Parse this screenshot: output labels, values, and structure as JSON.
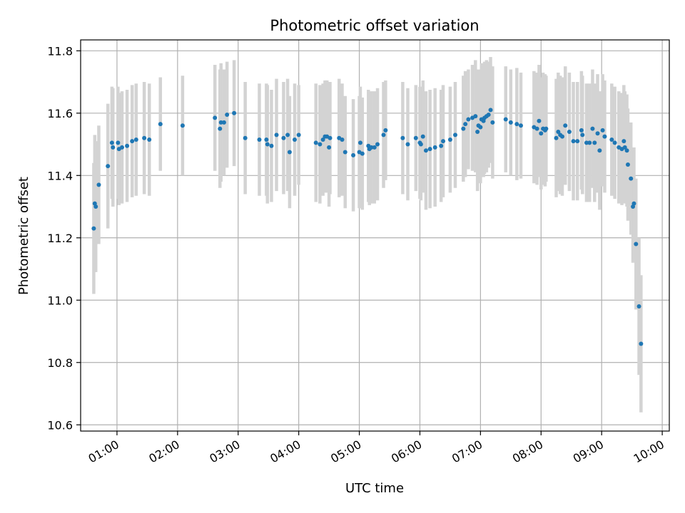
{
  "chart_data": {
    "type": "scatter",
    "title": "Photometric offset variation",
    "xlabel": "UTC time",
    "ylabel": "Photometric offset",
    "x_ticks": [
      "01:00",
      "02:00",
      "03:00",
      "04:00",
      "05:00",
      "06:00",
      "07:00",
      "08:00",
      "09:00",
      "10:00"
    ],
    "y_ticks": [
      "10.6",
      "10.8",
      "11.0",
      "11.2",
      "11.4",
      "11.6",
      "11.8"
    ],
    "xlim": [
      "00:24",
      "10:07"
    ],
    "ylim": [
      10.58,
      11.835
    ],
    "grid": true,
    "point_color": "#1f77b4",
    "errorbar_color": "#d3d3d3",
    "series": [
      {
        "points": [
          [
            "00:37",
            11.23,
            0.21
          ],
          [
            "00:38",
            11.31,
            0.22
          ],
          [
            "00:39",
            11.3,
            0.21
          ],
          [
            "00:42",
            11.37,
            0.19
          ],
          [
            "00:51",
            11.43,
            0.2
          ],
          [
            "00:55",
            11.505,
            0.18
          ],
          [
            "00:56",
            11.49,
            0.19
          ],
          [
            "01:01",
            11.505,
            0.18
          ],
          [
            "01:02",
            11.485,
            0.18
          ],
          [
            "01:05",
            11.49,
            0.18
          ],
          [
            "01:10",
            11.495,
            0.18
          ],
          [
            "01:15",
            11.51,
            0.18
          ],
          [
            "01:19",
            11.515,
            0.18
          ],
          [
            "01:27",
            11.52,
            0.18
          ],
          [
            "01:32",
            11.515,
            0.18
          ],
          [
            "01:43",
            11.565,
            0.15
          ],
          [
            "02:05",
            11.56,
            0.16
          ],
          [
            "02:37",
            11.585,
            0.17
          ],
          [
            "02:42",
            11.55,
            0.19
          ],
          [
            "02:43",
            11.57,
            0.19
          ],
          [
            "02:46",
            11.57,
            0.17
          ],
          [
            "02:49",
            11.595,
            0.17
          ],
          [
            "02:56",
            11.6,
            0.17
          ],
          [
            "03:07",
            11.52,
            0.18
          ],
          [
            "03:21",
            11.515,
            0.18
          ],
          [
            "03:28",
            11.515,
            0.18
          ],
          [
            "03:29",
            11.5,
            0.19
          ],
          [
            "03:33",
            11.495,
            0.18
          ],
          [
            "03:38",
            11.53,
            0.18
          ],
          [
            "03:45",
            11.52,
            0.18
          ],
          [
            "03:49",
            11.53,
            0.18
          ],
          [
            "03:51",
            11.475,
            0.18
          ],
          [
            "03:56",
            11.515,
            0.18
          ],
          [
            "04:00",
            11.53,
            0.16
          ],
          [
            "04:17",
            11.505,
            0.19
          ],
          [
            "04:21",
            11.5,
            0.19
          ],
          [
            "04:24",
            11.515,
            0.18
          ],
          [
            "04:26",
            11.525,
            0.18
          ],
          [
            "04:28",
            11.525,
            0.18
          ],
          [
            "04:30",
            11.49,
            0.19
          ],
          [
            "04:31",
            11.52,
            0.18
          ],
          [
            "04:40",
            11.52,
            0.19
          ],
          [
            "04:43",
            11.515,
            0.18
          ],
          [
            "04:46",
            11.475,
            0.18
          ],
          [
            "04:54",
            11.465,
            0.18
          ],
          [
            "05:00",
            11.475,
            0.18
          ],
          [
            "05:01",
            11.505,
            0.18
          ],
          [
            "05:03",
            11.47,
            0.18
          ],
          [
            "05:09",
            11.495,
            0.18
          ],
          [
            "05:10",
            11.485,
            0.18
          ],
          [
            "05:12",
            11.49,
            0.18
          ],
          [
            "05:15",
            11.49,
            0.18
          ],
          [
            "05:18",
            11.5,
            0.18
          ],
          [
            "05:24",
            11.53,
            0.17
          ],
          [
            "05:26",
            11.545,
            0.16
          ],
          [
            "05:43",
            11.52,
            0.18
          ],
          [
            "05:48",
            11.5,
            0.18
          ],
          [
            "05:56",
            11.52,
            0.17
          ],
          [
            "06:00",
            11.505,
            0.18
          ],
          [
            "06:01",
            11.5,
            0.18
          ],
          [
            "06:03",
            11.525,
            0.18
          ],
          [
            "06:06",
            11.48,
            0.19
          ],
          [
            "06:10",
            11.485,
            0.19
          ],
          [
            "06:15",
            11.49,
            0.19
          ],
          [
            "06:21",
            11.495,
            0.18
          ],
          [
            "06:23",
            11.51,
            0.18
          ],
          [
            "06:30",
            11.515,
            0.17
          ],
          [
            "06:35",
            11.53,
            0.17
          ],
          [
            "06:43",
            11.55,
            0.17
          ],
          [
            "06:45",
            11.565,
            0.17
          ],
          [
            "06:48",
            11.58,
            0.16
          ],
          [
            "06:52",
            11.585,
            0.17
          ],
          [
            "06:55",
            11.59,
            0.18
          ],
          [
            "06:57",
            11.54,
            0.19
          ],
          [
            "06:58",
            11.56,
            0.18
          ],
          [
            "07:00",
            11.555,
            0.18
          ],
          [
            "07:01",
            11.58,
            0.18
          ],
          [
            "07:03",
            11.575,
            0.18
          ],
          [
            "07:04",
            11.585,
            0.18
          ],
          [
            "07:06",
            11.59,
            0.18
          ],
          [
            "07:08",
            11.595,
            0.17
          ],
          [
            "07:10",
            11.61,
            0.17
          ],
          [
            "07:12",
            11.57,
            0.18
          ],
          [
            "07:25",
            11.58,
            0.17
          ],
          [
            "07:30",
            11.57,
            0.17
          ],
          [
            "07:36",
            11.565,
            0.18
          ],
          [
            "07:40",
            11.56,
            0.17
          ],
          [
            "07:53",
            11.555,
            0.18
          ],
          [
            "07:56",
            11.55,
            0.18
          ],
          [
            "07:58",
            11.575,
            0.18
          ],
          [
            "08:00",
            11.535,
            0.18
          ],
          [
            "08:02",
            11.55,
            0.18
          ],
          [
            "08:04",
            11.545,
            0.18
          ],
          [
            "08:05",
            11.55,
            0.17
          ],
          [
            "08:15",
            11.52,
            0.19
          ],
          [
            "08:17",
            11.54,
            0.19
          ],
          [
            "08:19",
            11.53,
            0.19
          ],
          [
            "08:21",
            11.525,
            0.19
          ],
          [
            "08:24",
            11.56,
            0.19
          ],
          [
            "08:28",
            11.54,
            0.19
          ],
          [
            "08:32",
            11.51,
            0.19
          ],
          [
            "08:36",
            11.51,
            0.19
          ],
          [
            "08:40",
            11.545,
            0.19
          ],
          [
            "08:41",
            11.53,
            0.19
          ],
          [
            "08:45",
            11.505,
            0.19
          ],
          [
            "08:48",
            11.505,
            0.19
          ],
          [
            "08:51",
            11.55,
            0.19
          ],
          [
            "08:53",
            11.505,
            0.19
          ],
          [
            "08:56",
            11.535,
            0.19
          ],
          [
            "08:58",
            11.48,
            0.19
          ],
          [
            "09:01",
            11.545,
            0.18
          ],
          [
            "09:03",
            11.525,
            0.18
          ],
          [
            "09:10",
            11.515,
            0.18
          ],
          [
            "09:13",
            11.505,
            0.18
          ],
          [
            "09:17",
            11.49,
            0.18
          ],
          [
            "09:20",
            11.485,
            0.18
          ],
          [
            "09:22",
            11.51,
            0.18
          ],
          [
            "09:23",
            11.49,
            0.18
          ],
          [
            "09:25",
            11.48,
            0.18
          ],
          [
            "09:26",
            11.435,
            0.18
          ],
          [
            "09:29",
            11.39,
            0.18
          ],
          [
            "09:31",
            11.3,
            0.18
          ],
          [
            "09:32",
            11.31,
            0.18
          ],
          [
            "09:34",
            11.18,
            0.21
          ],
          [
            "09:37",
            10.98,
            0.22
          ],
          [
            "09:39",
            10.86,
            0.22
          ]
        ]
      }
    ]
  }
}
